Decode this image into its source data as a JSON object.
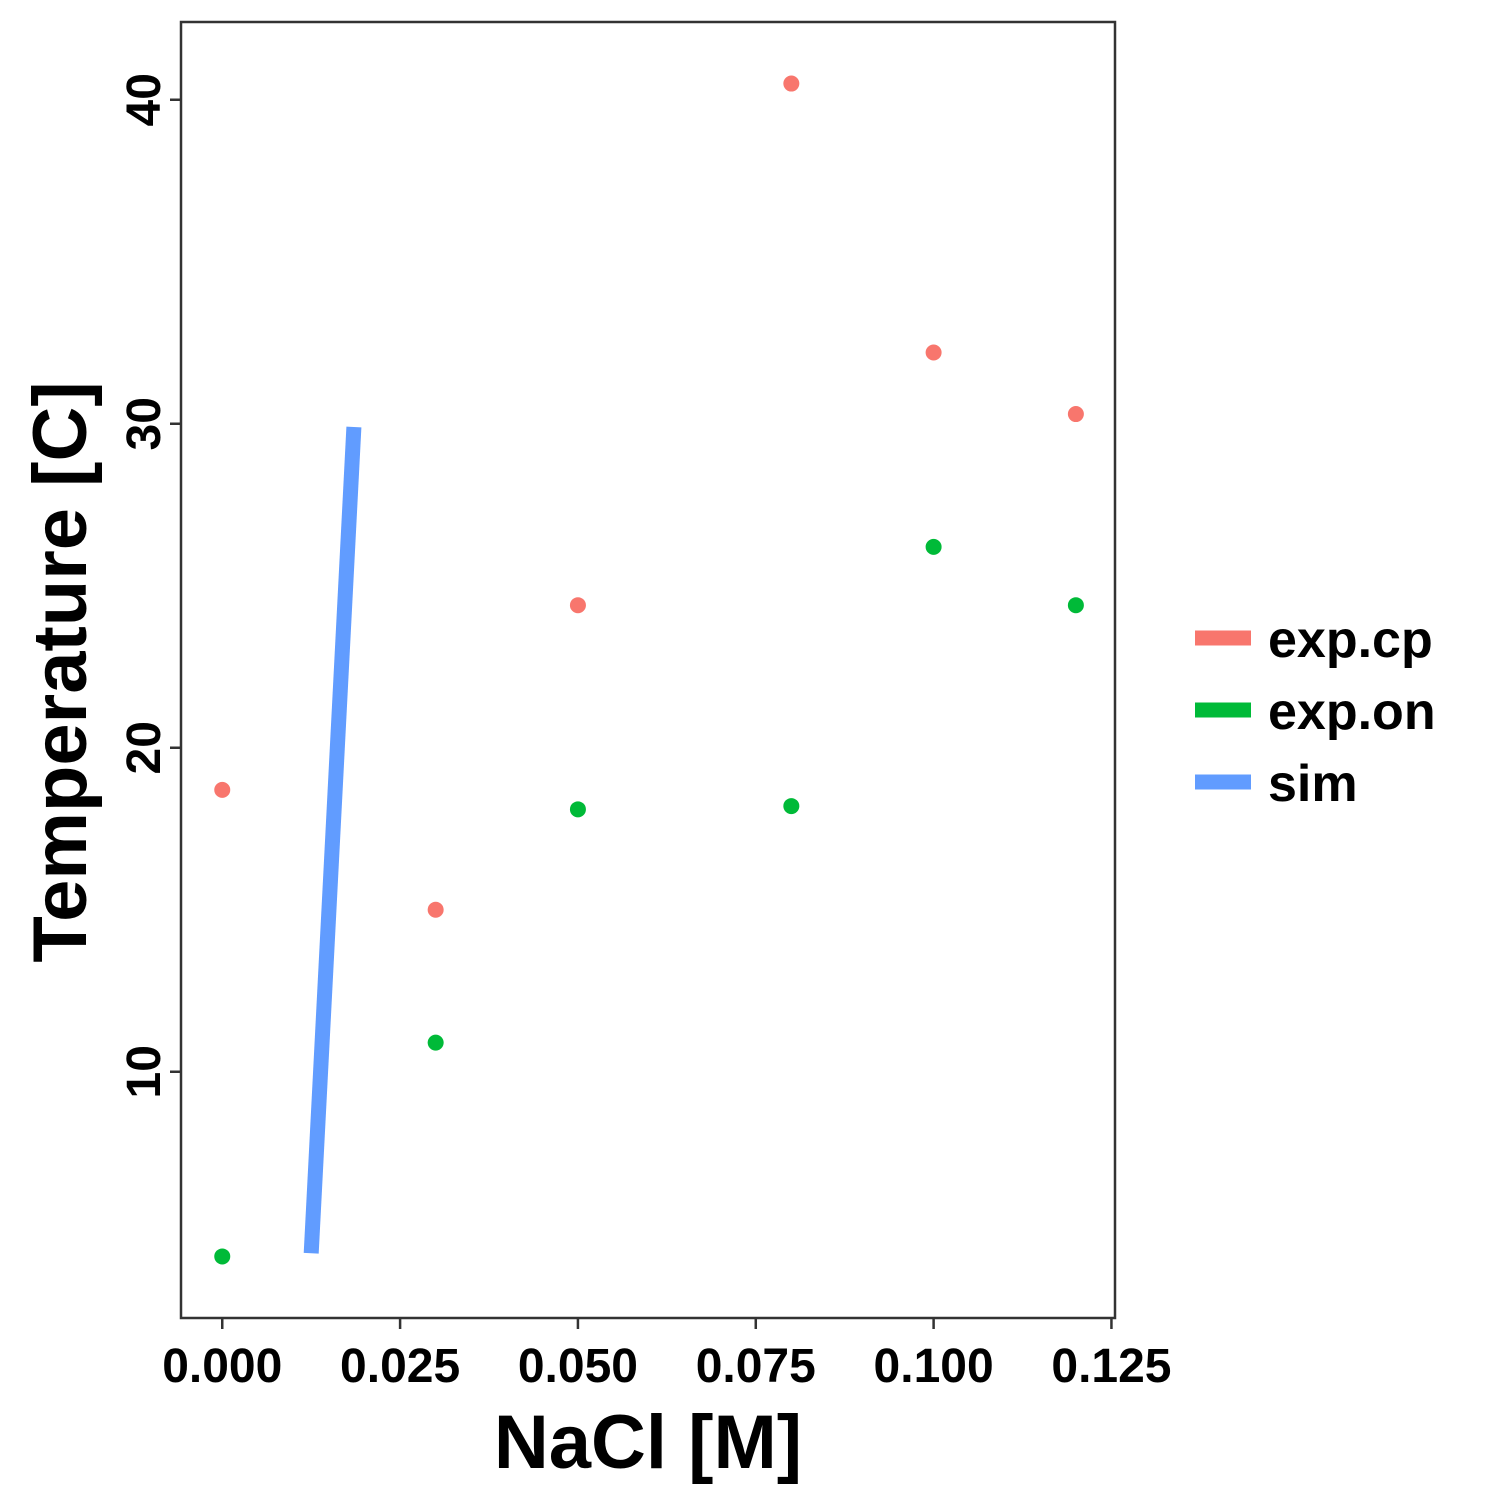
{
  "chart_data": {
    "type": "scatter",
    "xlabel": "NaCl [M]",
    "ylabel": "Temperature [C]",
    "xlim": [
      -0.0058,
      0.1255
    ],
    "ylim": [
      2.4,
      42.4
    ],
    "x_ticks": [
      0.0,
      0.025,
      0.05,
      0.075,
      0.1,
      0.125
    ],
    "x_tick_labels": [
      "0.000",
      "0.025",
      "0.050",
      "0.075",
      "0.100",
      "0.125"
    ],
    "y_ticks": [
      10,
      20,
      30,
      40
    ],
    "y_tick_labels": [
      "10",
      "20",
      "30",
      "40"
    ],
    "grid": false,
    "legend_position": "right",
    "series": [
      {
        "name": "exp.cp",
        "kind": "points",
        "color": "#F8766D",
        "points": [
          [
            0.0,
            18.7
          ],
          [
            0.03,
            15.0
          ],
          [
            0.05,
            24.4
          ],
          [
            0.08,
            40.5
          ],
          [
            0.1,
            32.2
          ],
          [
            0.12,
            30.3
          ]
        ]
      },
      {
        "name": "exp.on",
        "kind": "points",
        "color": "#00BA38",
        "points": [
          [
            0.0,
            4.3
          ],
          [
            0.03,
            10.9
          ],
          [
            0.05,
            18.1
          ],
          [
            0.08,
            18.2
          ],
          [
            0.1,
            26.2
          ],
          [
            0.12,
            24.4
          ]
        ]
      },
      {
        "name": "sim",
        "kind": "line",
        "color": "#619CFF",
        "points": [
          [
            0.0125,
            4.4
          ],
          [
            0.0185,
            29.9
          ]
        ]
      }
    ]
  }
}
